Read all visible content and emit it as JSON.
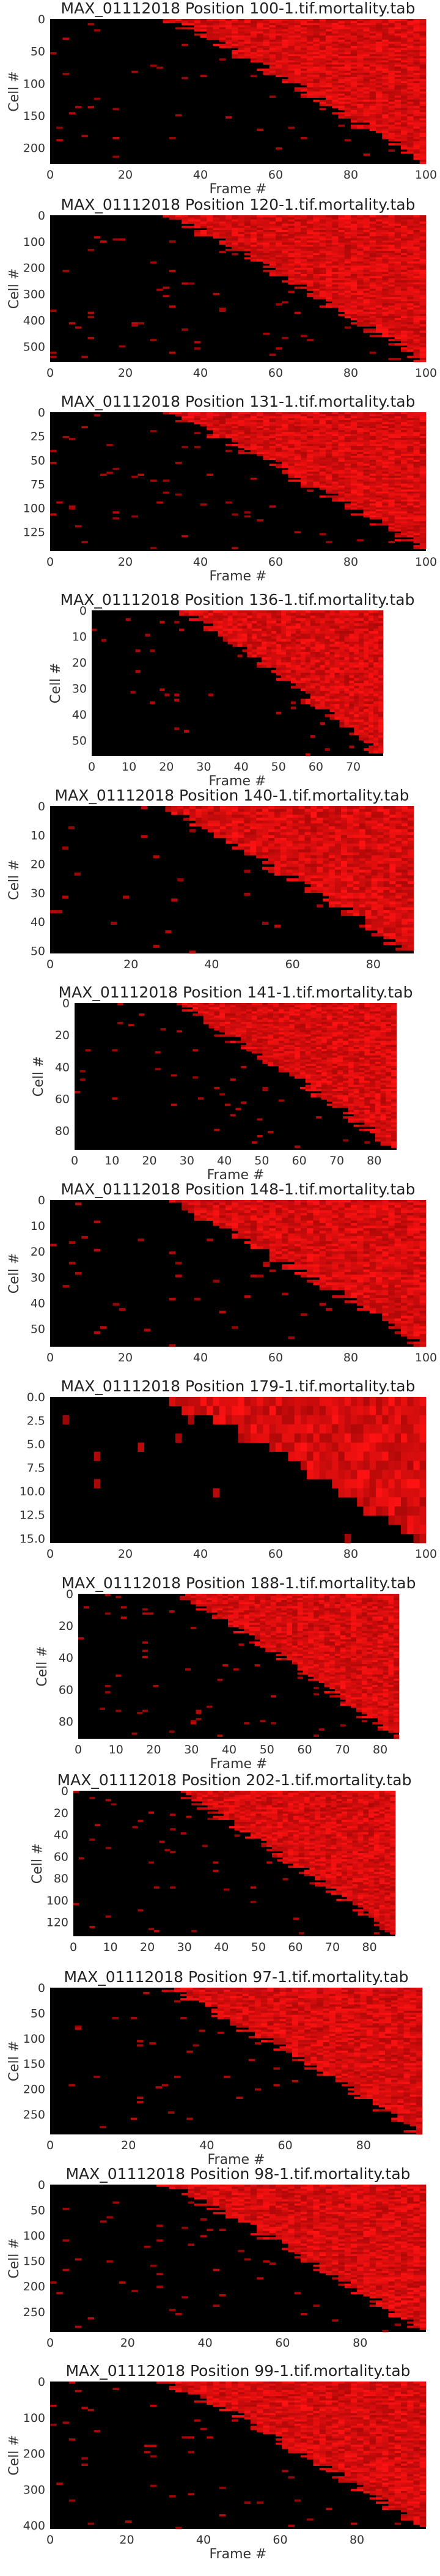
{
  "figure": {
    "background": "#ffffff",
    "colors": {
      "cell_background": "#000000",
      "signal_low": "#3a0000",
      "signal_high": "#ff1010"
    }
  },
  "chart_data": [
    {
      "type": "heatmap",
      "title": "MAX_01112018 Position 100-1.tif.mortality.tab",
      "xlabel": "Frame #",
      "ylabel": "Cell #",
      "xlim": [
        0,
        100
      ],
      "ylim": [
        0,
        225
      ],
      "xticks": [
        0,
        20,
        40,
        60,
        80,
        100
      ],
      "yticks": [
        0,
        50,
        100,
        150,
        200
      ]
    },
    {
      "type": "heatmap",
      "title": "MAX_01112018 Position 120-1.tif.mortality.tab",
      "xlabel": "",
      "ylabel": "Cell #",
      "xlim": [
        0,
        100
      ],
      "ylim": [
        0,
        560
      ],
      "xticks": [
        0,
        20,
        40,
        60,
        80,
        100
      ],
      "yticks": [
        0,
        100,
        200,
        300,
        400,
        500
      ]
    },
    {
      "type": "heatmap",
      "title": "MAX_01112018 Position 131-1.tif.mortality.tab",
      "xlabel": "Frame #",
      "ylabel": "",
      "xlim": [
        0,
        100
      ],
      "ylim": [
        0,
        145
      ],
      "xticks": [
        0,
        20,
        40,
        60,
        80,
        100
      ],
      "yticks": [
        0,
        25,
        50,
        75,
        100,
        125
      ]
    },
    {
      "type": "heatmap",
      "title": "MAX_01112018 Position 136-1.tif.mortality.tab",
      "xlabel": "Frame #",
      "ylabel": "Cell #",
      "xlim": [
        0,
        78
      ],
      "ylim": [
        0,
        56
      ],
      "xticks": [
        0,
        10,
        20,
        30,
        40,
        50,
        60,
        70
      ],
      "yticks": [
        0,
        10,
        20,
        30,
        40,
        50
      ]
    },
    {
      "type": "heatmap",
      "title": "MAX_01112018 Position 140-1.tif.mortality.tab",
      "xlabel": "",
      "ylabel": "Cell #",
      "xlim": [
        0,
        90
      ],
      "ylim": [
        0,
        51
      ],
      "xticks": [
        0,
        20,
        40,
        60,
        80
      ],
      "yticks": [
        0,
        10,
        20,
        30,
        40,
        50
      ]
    },
    {
      "type": "heatmap",
      "title": "MAX_01112018 Position 141-1.tif.mortality.tab",
      "xlabel": "Frame #",
      "ylabel": "Cell #",
      "xlim": [
        0,
        86
      ],
      "ylim": [
        0,
        92
      ],
      "xticks": [
        0,
        10,
        20,
        30,
        40,
        50,
        60,
        70,
        80
      ],
      "yticks": [
        0,
        20,
        40,
        60,
        80
      ]
    },
    {
      "type": "heatmap",
      "title": "MAX_01112018 Position 148-1.tif.mortality.tab",
      "xlabel": "",
      "ylabel": "Cell #",
      "xlim": [
        0,
        100
      ],
      "ylim": [
        0,
        57
      ],
      "xticks": [
        0,
        20,
        40,
        60,
        80,
        100
      ],
      "yticks": [
        0,
        10,
        20,
        30,
        40,
        50
      ]
    },
    {
      "type": "heatmap",
      "title": "MAX_01112018 Position 179-1.tif.mortality.tab",
      "xlabel": "",
      "ylabel": "",
      "xlim": [
        0,
        100
      ],
      "ylim": [
        0,
        15.5
      ],
      "xticks": [
        0,
        20,
        40,
        60,
        80,
        100
      ],
      "yticks": [
        0.0,
        2.5,
        5.0,
        7.5,
        10.0,
        12.5,
        15.0
      ],
      "ytick_labels": [
        "0.0",
        "2.5",
        "5.0",
        "7.5",
        "10.0",
        "12.5",
        "15.0"
      ]
    },
    {
      "type": "heatmap",
      "title": "MAX_01112018 Position 188-1.tif.mortality.tab",
      "xlabel": "Frame #",
      "ylabel": "Cell #",
      "xlim": [
        0,
        85
      ],
      "ylim": [
        0,
        91
      ],
      "xticks": [
        0,
        10,
        20,
        30,
        40,
        50,
        60,
        70,
        80
      ],
      "yticks": [
        0,
        20,
        40,
        60,
        80
      ]
    },
    {
      "type": "heatmap",
      "title": "MAX_01112018 Position 202-1.tif.mortality.tab",
      "xlabel": "",
      "ylabel": "Cell #",
      "xlim": [
        0,
        87
      ],
      "ylim": [
        0,
        133
      ],
      "xticks": [
        0,
        10,
        20,
        30,
        40,
        50,
        60,
        70,
        80
      ],
      "yticks": [
        0,
        20,
        40,
        60,
        80,
        100,
        120
      ]
    },
    {
      "type": "heatmap",
      "title": "MAX_01112018 Position 97-1.tif.mortality.tab",
      "xlabel": "Frame #",
      "ylabel": "Cell #",
      "xlim": [
        0,
        95
      ],
      "ylim": [
        0,
        290
      ],
      "xticks": [
        0,
        20,
        40,
        60,
        80
      ],
      "yticks": [
        0,
        50,
        100,
        150,
        200,
        250
      ]
    },
    {
      "type": "heatmap",
      "title": "MAX_01112018 Position 98-1.tif.mortality.tab",
      "xlabel": "",
      "ylabel": "Cell #",
      "xlim": [
        0,
        97
      ],
      "ylim": [
        0,
        290
      ],
      "xticks": [
        0,
        20,
        40,
        60,
        80
      ],
      "yticks": [
        0,
        50,
        100,
        150,
        200,
        250
      ]
    },
    {
      "type": "heatmap",
      "title": "MAX_01112018 Position 99-1.tif.mortality.tab",
      "xlabel": "Frame #",
      "ylabel": "Cell #",
      "xlim": [
        0,
        98
      ],
      "ylim": [
        0,
        410
      ],
      "xticks": [
        0,
        20,
        40,
        60,
        80
      ],
      "yticks": [
        0,
        100,
        200,
        300,
        400
      ]
    }
  ]
}
